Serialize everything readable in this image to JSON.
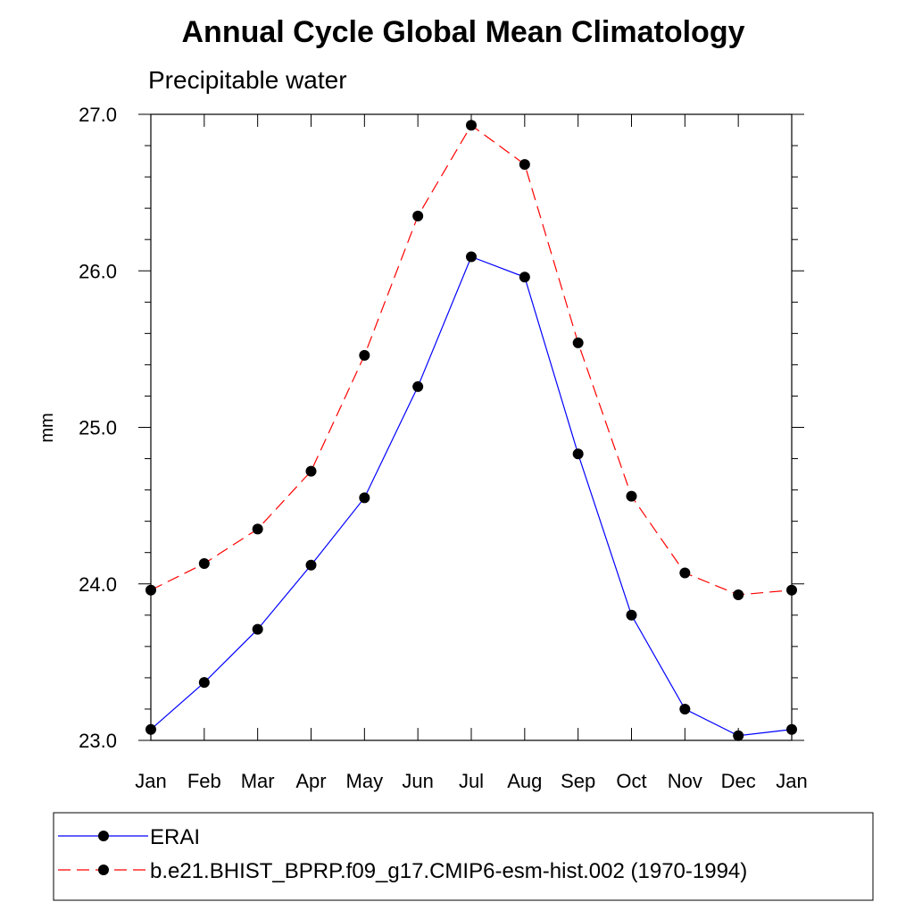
{
  "chart_data": {
    "type": "line",
    "title": "Annual Cycle Global Mean Climatology",
    "subtitle": "Precipitable water",
    "xlabel": "",
    "ylabel": "mm",
    "categories": [
      "Jan",
      "Feb",
      "Mar",
      "Apr",
      "May",
      "Jun",
      "Jul",
      "Aug",
      "Sep",
      "Oct",
      "Nov",
      "Dec",
      "Jan"
    ],
    "ylim": [
      23.0,
      27.0
    ],
    "yticks": [
      "23.0",
      "24.0",
      "25.0",
      "26.0",
      "27.0"
    ],
    "grid": false,
    "legend_position": "bottom",
    "series": [
      {
        "name": "ERAI",
        "color": "#0000ff",
        "line_style": "solid",
        "marker": "filled-circle",
        "values": [
          23.07,
          23.37,
          23.71,
          24.12,
          24.55,
          25.26,
          26.09,
          25.96,
          24.83,
          23.8,
          23.2,
          23.03,
          23.07
        ]
      },
      {
        "name": "b.e21.BHIST_BPRP.f09_g17.CMIP6-esm-hist.002 (1970-1994)",
        "color": "#ff0000",
        "line_style": "dashed",
        "marker": "filled-circle",
        "values": [
          23.96,
          24.13,
          24.35,
          24.72,
          25.46,
          26.35,
          26.93,
          26.68,
          25.54,
          24.56,
          24.07,
          23.93,
          23.96
        ]
      }
    ]
  }
}
